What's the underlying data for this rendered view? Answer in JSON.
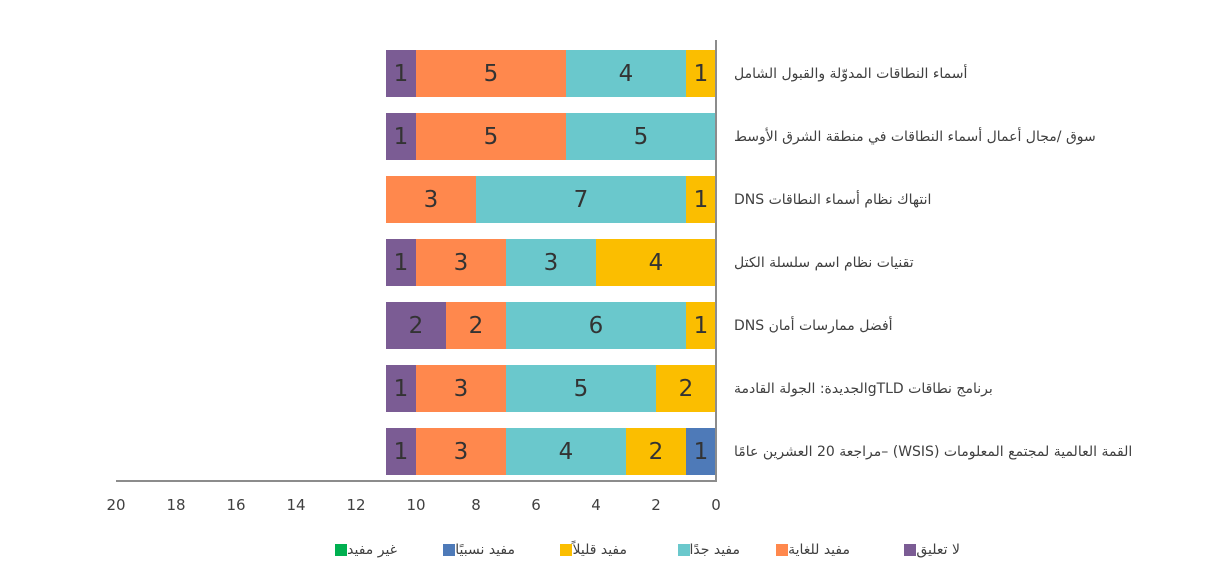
{
  "chart_data": {
    "type": "bar",
    "orientation": "horizontal",
    "stacked": true,
    "title": "",
    "xlabel": "",
    "ylabel": "",
    "xlim": [
      20,
      0
    ],
    "x_reversed": true,
    "x_ticks": [
      20,
      18,
      16,
      14,
      12,
      10,
      8,
      6,
      4,
      2,
      0
    ],
    "grid": false,
    "legend_position": "bottom",
    "categories": [
      "أسماء النطاقات المدوّلة والقبول الشامل",
      "سوق /مجال أعمال أسماء النطاقات في منطقة الشرق الأوسط",
      "انتهاك نظام أسماء النطاقات DNS",
      "تقنيات نظام اسم سلسلة الكتل",
      "أفضل ممارسات أمان DNS",
      "برنامج نطاقات gTLDالجديدة: الجولة القادمة",
      "القمة العالمية لمجتمع المعلومات (WSIS) –مراجعة 20 العشرين عامًا"
    ],
    "series": [
      {
        "name": "غير مفيد",
        "color": "#00B050",
        "values": [
          0,
          0,
          0,
          0,
          0,
          0,
          0
        ]
      },
      {
        "name": "مفيد نسبيًا",
        "color": "#4E7AB8",
        "values": [
          0,
          0,
          0,
          0,
          0,
          0,
          1
        ]
      },
      {
        "name": "مفيد قليلاً",
        "color": "#FBBE00",
        "values": [
          1,
          0,
          1,
          4,
          1,
          2,
          2
        ]
      },
      {
        "name": "مفيد جدًا",
        "color": "#6AC8CC",
        "values": [
          4,
          5,
          7,
          3,
          6,
          5,
          4
        ]
      },
      {
        "name": "مفيد للغاية",
        "color": "#FF884D",
        "values": [
          5,
          5,
          3,
          3,
          2,
          3,
          3
        ]
      },
      {
        "name": "لا تعليق",
        "color": "#7B5C94",
        "values": [
          1,
          1,
          0,
          1,
          2,
          1,
          1
        ]
      }
    ]
  },
  "legend": [
    {
      "label": "لا تعليق",
      "color": "#7B5C94"
    },
    {
      "label": "مفيد للغاية",
      "color": "#FF884D"
    },
    {
      "label": "مفيد جدًا",
      "color": "#6AC8CC"
    },
    {
      "label": "مفيد قليلاً",
      "color": "#FBBE00"
    },
    {
      "label": "مفيد نسبيًا",
      "color": "#4E7AB8"
    },
    {
      "label": "غير مفيد",
      "color": "#00B050"
    }
  ],
  "ticks": [
    "20",
    "18",
    "16",
    "14",
    "12",
    "10",
    "8",
    "6",
    "4",
    "2",
    "0"
  ]
}
